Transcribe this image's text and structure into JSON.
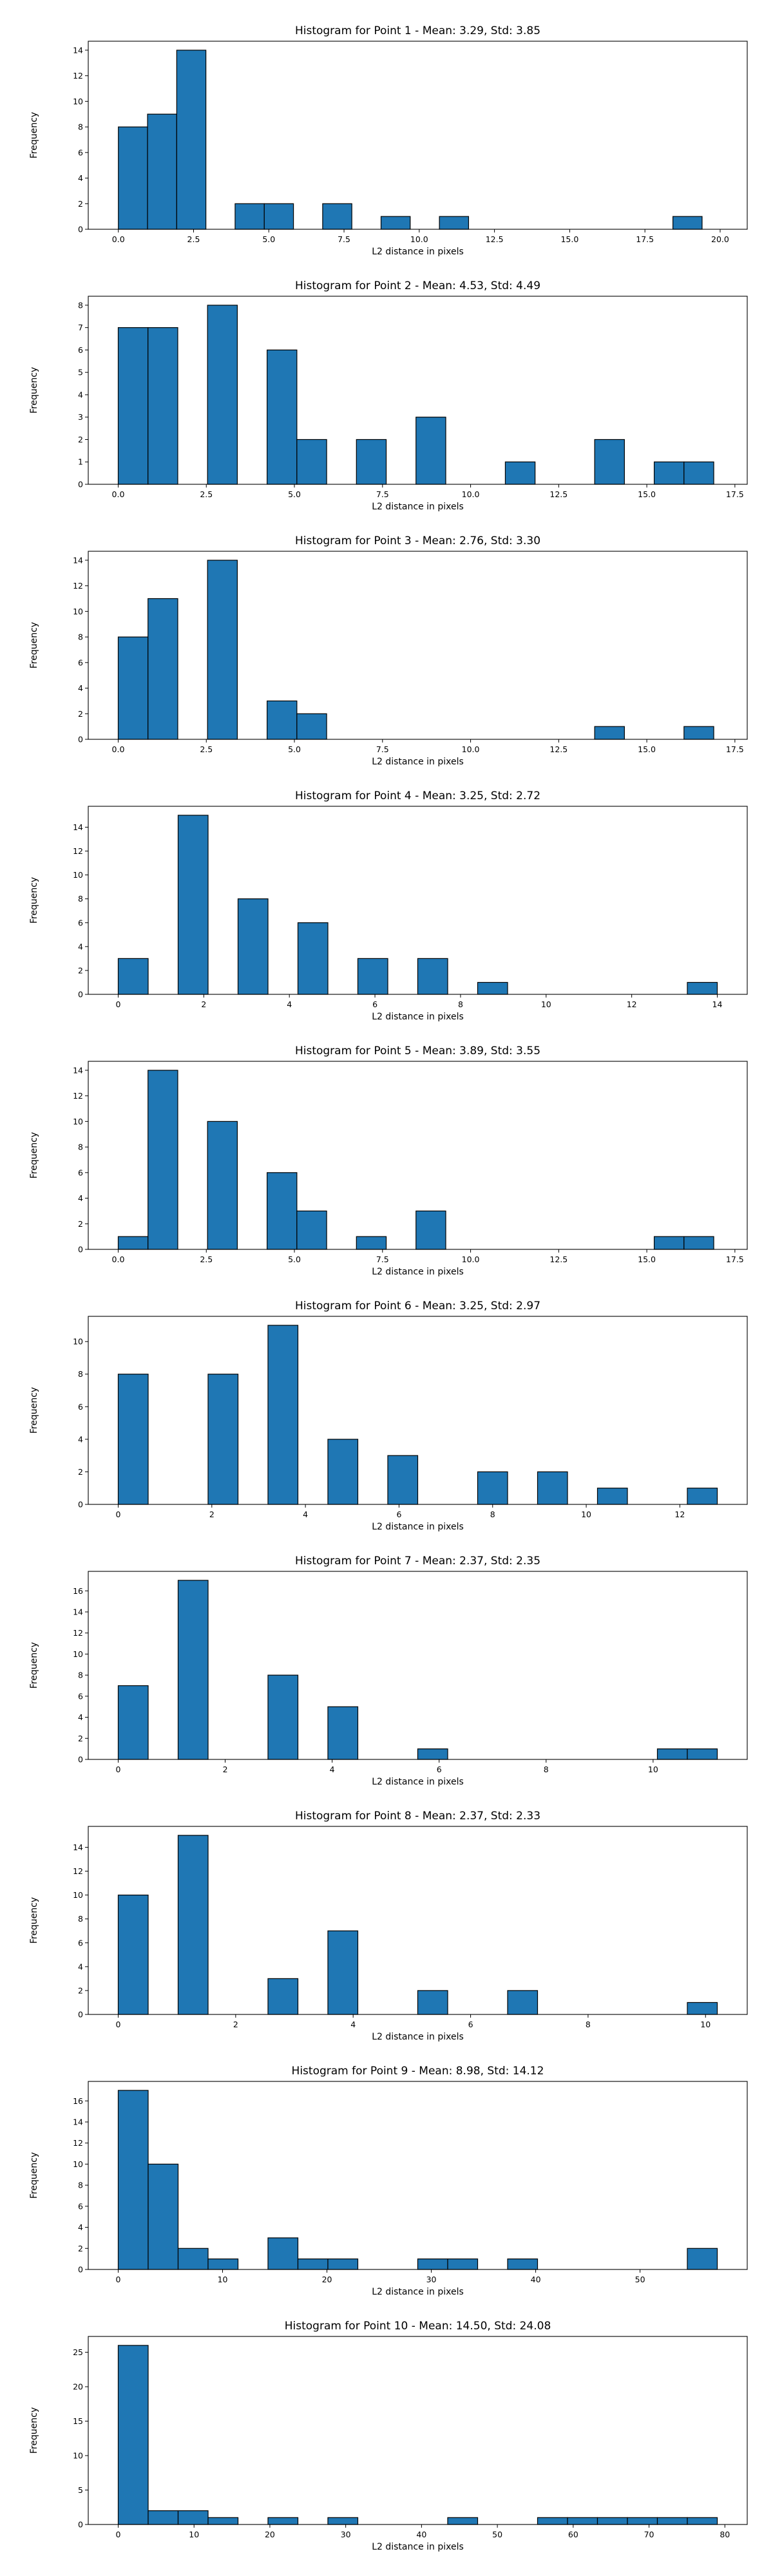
{
  "chart_data": [
    {
      "type": "bar",
      "title": "Histogram for Point 1 - Mean: 3.29, Std: 3.85",
      "xlabel": "L2 distance in pixels",
      "ylabel": "Frequency",
      "xlim": [
        -1.0,
        20.9
      ],
      "ylim": [
        0,
        14.7
      ],
      "xticks": [
        0.0,
        2.5,
        5.0,
        7.5,
        10.0,
        12.5,
        15.0,
        17.5,
        20.0
      ],
      "xtick_labels": [
        "0.0",
        "2.5",
        "5.0",
        "7.5",
        "10.0",
        "12.5",
        "15.0",
        "17.5",
        "20.0"
      ],
      "yticks": [
        0,
        2,
        4,
        6,
        8,
        10,
        12,
        14
      ],
      "bin_edges": [
        0,
        0.97,
        1.94,
        2.91,
        3.88,
        4.85,
        5.82,
        6.79,
        7.76,
        8.73,
        9.7,
        10.67,
        11.64,
        12.61,
        13.58,
        14.55,
        15.52,
        16.49,
        17.46,
        18.43,
        19.4
      ],
      "values": [
        8,
        9,
        14,
        0,
        2,
        2,
        0,
        2,
        0,
        1,
        0,
        1,
        0,
        0,
        0,
        0,
        0,
        0,
        0,
        1
      ],
      "grid": false,
      "bar_color": "#1f77b4",
      "edge_color": "#000000"
    },
    {
      "type": "bar",
      "title": "Histogram for Point 2 - Mean: 4.53, Std: 4.49",
      "xlabel": "L2 distance in pixels",
      "ylabel": "Frequency",
      "xlim": [
        -0.85,
        17.85
      ],
      "ylim": [
        0,
        8.4
      ],
      "xticks": [
        0.0,
        2.5,
        5.0,
        7.5,
        10.0,
        12.5,
        15.0,
        17.5
      ],
      "xtick_labels": [
        "0.0",
        "2.5",
        "5.0",
        "7.5",
        "10.0",
        "12.5",
        "15.0",
        "17.5"
      ],
      "yticks": [
        0,
        1,
        2,
        3,
        4,
        5,
        6,
        7,
        8
      ],
      "bin_edges": [
        0,
        0.845,
        1.69,
        2.535,
        3.38,
        4.225,
        5.07,
        5.915,
        6.76,
        7.605,
        8.45,
        9.295,
        10.14,
        10.985,
        11.83,
        12.675,
        13.52,
        14.365,
        15.21,
        16.055,
        16.9
      ],
      "values": [
        7,
        7,
        0,
        8,
        0,
        6,
        2,
        0,
        2,
        0,
        3,
        0,
        0,
        1,
        0,
        0,
        2,
        0,
        1,
        1
      ],
      "grid": false,
      "bar_color": "#1f77b4",
      "edge_color": "#000000"
    },
    {
      "type": "bar",
      "title": "Histogram for Point 3 - Mean: 2.76, Std: 3.30",
      "xlabel": "L2 distance in pixels",
      "ylabel": "Frequency",
      "xlim": [
        -0.85,
        17.85
      ],
      "ylim": [
        0,
        14.7
      ],
      "xticks": [
        0.0,
        2.5,
        5.0,
        7.5,
        10.0,
        12.5,
        15.0,
        17.5
      ],
      "xtick_labels": [
        "0.0",
        "2.5",
        "5.0",
        "7.5",
        "10.0",
        "12.5",
        "15.0",
        "17.5"
      ],
      "yticks": [
        0,
        2,
        4,
        6,
        8,
        10,
        12,
        14
      ],
      "bin_edges": [
        0,
        0.845,
        1.69,
        2.535,
        3.38,
        4.225,
        5.07,
        5.915,
        6.76,
        7.605,
        8.45,
        9.295,
        10.14,
        10.985,
        11.83,
        12.675,
        13.52,
        14.365,
        15.21,
        16.055,
        16.9
      ],
      "values": [
        8,
        11,
        0,
        14,
        0,
        3,
        2,
        0,
        0,
        0,
        0,
        0,
        0,
        0,
        0,
        0,
        1,
        0,
        0,
        1
      ],
      "grid": false,
      "bar_color": "#1f77b4",
      "edge_color": "#000000"
    },
    {
      "type": "bar",
      "title": "Histogram for Point 4 - Mean: 3.25, Std: 2.72",
      "xlabel": "L2 distance in pixels",
      "ylabel": "Frequency",
      "xlim": [
        -0.7,
        14.7
      ],
      "ylim": [
        0,
        15.75
      ],
      "xticks": [
        0,
        2,
        4,
        6,
        8,
        10,
        12,
        14
      ],
      "xtick_labels": [
        "0",
        "2",
        "4",
        "6",
        "8",
        "10",
        "12",
        "14"
      ],
      "yticks": [
        0,
        2,
        4,
        6,
        8,
        10,
        12,
        14
      ],
      "bin_edges": [
        0,
        0.7,
        1.4,
        2.1,
        2.8,
        3.5,
        4.2,
        4.9,
        5.6,
        6.3,
        7.0,
        7.7,
        8.4,
        9.1,
        9.8,
        10.5,
        11.2,
        11.9,
        12.6,
        13.3,
        14.0
      ],
      "values": [
        3,
        0,
        15,
        0,
        8,
        0,
        6,
        0,
        3,
        0,
        3,
        0,
        1,
        0,
        0,
        0,
        0,
        0,
        0,
        1
      ],
      "grid": false,
      "bar_color": "#1f77b4",
      "edge_color": "#000000"
    },
    {
      "type": "bar",
      "title": "Histogram for Point 5 - Mean: 3.89, Std: 3.55",
      "xlabel": "L2 distance in pixels",
      "ylabel": "Frequency",
      "xlim": [
        -0.85,
        17.85
      ],
      "ylim": [
        0,
        14.7
      ],
      "xticks": [
        0.0,
        2.5,
        5.0,
        7.5,
        10.0,
        12.5,
        15.0,
        17.5
      ],
      "xtick_labels": [
        "0.0",
        "2.5",
        "5.0",
        "7.5",
        "10.0",
        "12.5",
        "15.0",
        "17.5"
      ],
      "yticks": [
        0,
        2,
        4,
        6,
        8,
        10,
        12,
        14
      ],
      "bin_edges": [
        0,
        0.845,
        1.69,
        2.535,
        3.38,
        4.225,
        5.07,
        5.915,
        6.76,
        7.605,
        8.45,
        9.295,
        10.14,
        10.985,
        11.83,
        12.675,
        13.52,
        14.365,
        15.21,
        16.055,
        16.9
      ],
      "values": [
        1,
        14,
        0,
        10,
        0,
        6,
        3,
        0,
        1,
        0,
        3,
        0,
        0,
        0,
        0,
        0,
        0,
        0,
        1,
        1
      ],
      "grid": false,
      "bar_color": "#1f77b4",
      "edge_color": "#000000"
    },
    {
      "type": "bar",
      "title": "Histogram for Point 6 - Mean: 3.25, Std: 2.97",
      "xlabel": "L2 distance in pixels",
      "ylabel": "Frequency",
      "xlim": [
        -0.64,
        13.44
      ],
      "ylim": [
        0,
        11.55
      ],
      "xticks": [
        0,
        2,
        4,
        6,
        8,
        10,
        12
      ],
      "xtick_labels": [
        "0",
        "2",
        "4",
        "6",
        "8",
        "10",
        "12"
      ],
      "yticks": [
        0,
        2,
        4,
        6,
        8,
        10
      ],
      "bin_edges": [
        0,
        0.64,
        1.28,
        1.92,
        2.56,
        3.2,
        3.84,
        4.48,
        5.12,
        5.76,
        6.4,
        7.04,
        7.68,
        8.32,
        8.96,
        9.6,
        10.24,
        10.88,
        11.52,
        12.16,
        12.8
      ],
      "values": [
        8,
        0,
        0,
        8,
        0,
        11,
        0,
        4,
        0,
        3,
        0,
        0,
        2,
        0,
        2,
        0,
        1,
        0,
        0,
        1
      ],
      "grid": false,
      "bar_color": "#1f77b4",
      "edge_color": "#000000"
    },
    {
      "type": "bar",
      "title": "Histogram for Point 7 - Mean: 2.37, Std: 2.35",
      "xlabel": "L2 distance in pixels",
      "ylabel": "Frequency",
      "xlim": [
        -0.56,
        11.76
      ],
      "ylim": [
        0,
        17.85
      ],
      "xticks": [
        0,
        2,
        4,
        6,
        8,
        10
      ],
      "xtick_labels": [
        "0",
        "2",
        "4",
        "6",
        "8",
        "10"
      ],
      "yticks": [
        0,
        2,
        4,
        6,
        8,
        10,
        12,
        14,
        16
      ],
      "bin_edges": [
        0,
        0.56,
        1.12,
        1.68,
        2.24,
        2.8,
        3.36,
        3.92,
        4.48,
        5.04,
        5.6,
        6.16,
        6.72,
        7.28,
        7.84,
        8.4,
        8.96,
        9.52,
        10.08,
        10.64,
        11.2
      ],
      "values": [
        7,
        0,
        17,
        0,
        0,
        8,
        0,
        5,
        0,
        0,
        1,
        0,
        0,
        0,
        0,
        0,
        0,
        0,
        1,
        1
      ],
      "grid": false,
      "bar_color": "#1f77b4",
      "edge_color": "#000000"
    },
    {
      "type": "bar",
      "title": "Histogram for Point 8 - Mean: 2.37, Std: 2.33",
      "xlabel": "L2 distance in pixels",
      "ylabel": "Frequency",
      "xlim": [
        -0.51,
        10.71
      ],
      "ylim": [
        0,
        15.75
      ],
      "xticks": [
        0,
        2,
        4,
        6,
        8,
        10
      ],
      "xtick_labels": [
        "0",
        "2",
        "4",
        "6",
        "8",
        "10"
      ],
      "yticks": [
        0,
        2,
        4,
        6,
        8,
        10,
        12,
        14
      ],
      "bin_edges": [
        0,
        0.51,
        1.02,
        1.53,
        2.04,
        2.55,
        3.06,
        3.57,
        4.08,
        4.59,
        5.1,
        5.61,
        6.12,
        6.63,
        7.14,
        7.65,
        8.16,
        8.67,
        9.18,
        9.69,
        10.2
      ],
      "values": [
        10,
        0,
        15,
        0,
        0,
        3,
        0,
        7,
        0,
        0,
        2,
        0,
        0,
        2,
        0,
        0,
        0,
        0,
        0,
        1
      ],
      "grid": false,
      "bar_color": "#1f77b4",
      "edge_color": "#000000"
    },
    {
      "type": "bar",
      "title": "Histogram for Point 9 - Mean: 8.98, Std: 14.12",
      "xlabel": "L2 distance in pixels",
      "ylabel": "Frequency",
      "xlim": [
        -2.87,
        60.27
      ],
      "ylim": [
        0,
        17.85
      ],
      "xticks": [
        0,
        10,
        20,
        30,
        40,
        50
      ],
      "xtick_labels": [
        "0",
        "10",
        "20",
        "30",
        "40",
        "50"
      ],
      "yticks": [
        0,
        2,
        4,
        6,
        8,
        10,
        12,
        14,
        16
      ],
      "bin_edges": [
        0,
        2.87,
        5.74,
        8.61,
        11.48,
        14.35,
        17.22,
        20.09,
        22.96,
        25.83,
        28.7,
        31.57,
        34.44,
        37.31,
        40.18,
        43.05,
        45.92,
        48.79,
        51.66,
        54.53,
        57.4
      ],
      "values": [
        17,
        10,
        2,
        1,
        0,
        3,
        1,
        1,
        0,
        0,
        1,
        1,
        0,
        1,
        0,
        0,
        0,
        0,
        0,
        2
      ],
      "grid": false,
      "bar_color": "#1f77b4",
      "edge_color": "#000000"
    },
    {
      "type": "bar",
      "title": "Histogram for Point 10 - Mean: 14.50, Std: 24.08",
      "xlabel": "L2 distance in pixels",
      "ylabel": "Frequency",
      "xlim": [
        -3.95,
        82.95
      ],
      "ylim": [
        0,
        27.3
      ],
      "xticks": [
        0,
        10,
        20,
        30,
        40,
        50,
        60,
        70,
        80
      ],
      "xtick_labels": [
        "0",
        "10",
        "20",
        "30",
        "40",
        "50",
        "60",
        "70",
        "80"
      ],
      "yticks": [
        0,
        5,
        10,
        15,
        20,
        25
      ],
      "bin_edges": [
        0,
        3.95,
        7.9,
        11.85,
        15.8,
        19.75,
        23.7,
        27.65,
        31.6,
        35.55,
        39.5,
        43.45,
        47.4,
        51.35,
        55.3,
        59.25,
        63.2,
        67.15,
        71.1,
        75.05,
        79.0
      ],
      "values": [
        26,
        2,
        2,
        1,
        0,
        1,
        0,
        1,
        0,
        0,
        0,
        1,
        0,
        0,
        1,
        1,
        1,
        1,
        1,
        1
      ],
      "grid": false,
      "bar_color": "#1f77b4",
      "edge_color": "#000000"
    }
  ]
}
